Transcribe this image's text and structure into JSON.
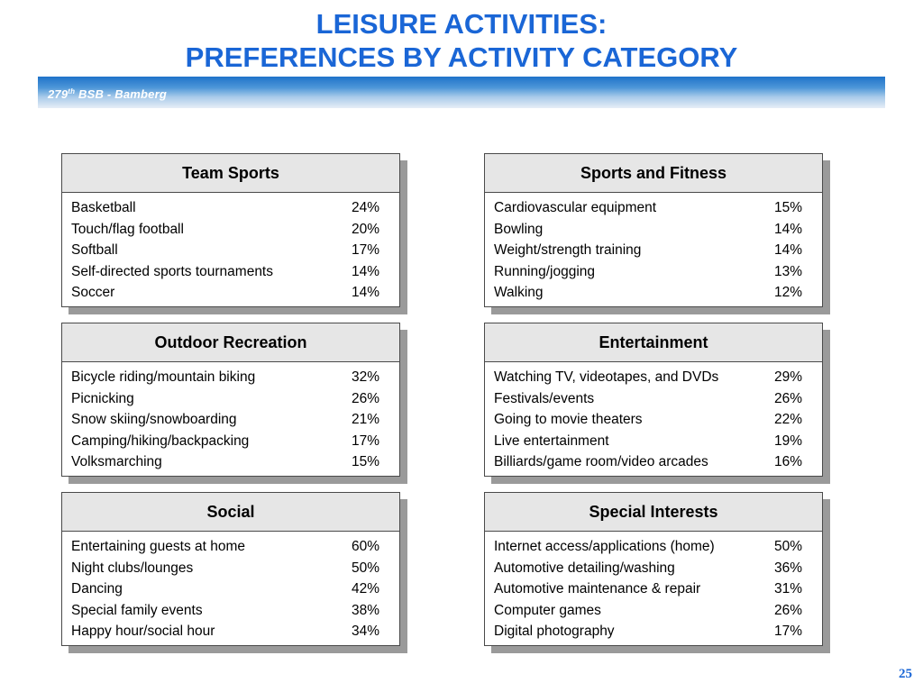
{
  "header": {
    "title_line1": "LEISURE ACTIVITIES:",
    "title_line2": "PREFERENCES BY ACTIVITY CATEGORY",
    "banner_number": "279",
    "banner_sup": "th",
    "banner_rest": " BSB - Bamberg",
    "title_color": "#1a66d6"
  },
  "cards": [
    {
      "title": "Team Sports",
      "rows": [
        {
          "label": "Basketball",
          "value": "24%"
        },
        {
          "label": "Touch/flag football",
          "value": "20%"
        },
        {
          "label": "Softball",
          "value": "17%"
        },
        {
          "label": "Self-directed sports tournaments",
          "value": "14%"
        },
        {
          "label": "Soccer",
          "value": "14%"
        }
      ]
    },
    {
      "title": "Sports and Fitness",
      "rows": [
        {
          "label": "Cardiovascular equipment",
          "value": "15%"
        },
        {
          "label": "Bowling",
          "value": "14%"
        },
        {
          "label": "Weight/strength training",
          "value": "14%"
        },
        {
          "label": "Running/jogging",
          "value": "13%"
        },
        {
          "label": "Walking",
          "value": "12%"
        }
      ]
    },
    {
      "title": "Outdoor Recreation",
      "rows": [
        {
          "label": "Bicycle riding/mountain biking",
          "value": "32%"
        },
        {
          "label": "Picnicking",
          "value": "26%"
        },
        {
          "label": "Snow skiing/snowboarding",
          "value": "21%"
        },
        {
          "label": "Camping/hiking/backpacking",
          "value": "17%"
        },
        {
          "label": "Volksmarching",
          "value": "15%"
        }
      ]
    },
    {
      "title": "Entertainment",
      "rows": [
        {
          "label": "Watching TV, videotapes, and DVDs",
          "value": "29%"
        },
        {
          "label": "Festivals/events",
          "value": "26%"
        },
        {
          "label": "Going to movie theaters",
          "value": "22%"
        },
        {
          "label": "Live entertainment",
          "value": "19%"
        },
        {
          "label": "Billiards/game room/video arcades",
          "value": "16%"
        }
      ]
    },
    {
      "title": "Social",
      "rows": [
        {
          "label": "Entertaining guests at home",
          "value": "60%"
        },
        {
          "label": "Night clubs/lounges",
          "value": "50%"
        },
        {
          "label": "Dancing",
          "value": "42%"
        },
        {
          "label": "Special family events",
          "value": "38%"
        },
        {
          "label": "Happy hour/social hour",
          "value": "34%"
        }
      ]
    },
    {
      "title": "Special Interests",
      "rows": [
        {
          "label": "Internet access/applications (home)",
          "value": "50%"
        },
        {
          "label": "Automotive detailing/washing",
          "value": "36%"
        },
        {
          "label": "Automotive maintenance & repair",
          "value": "31%"
        },
        {
          "label": "Computer games",
          "value": "26%"
        },
        {
          "label": "Digital photography",
          "value": "17%"
        }
      ]
    }
  ],
  "footer": {
    "page_number": "25"
  }
}
